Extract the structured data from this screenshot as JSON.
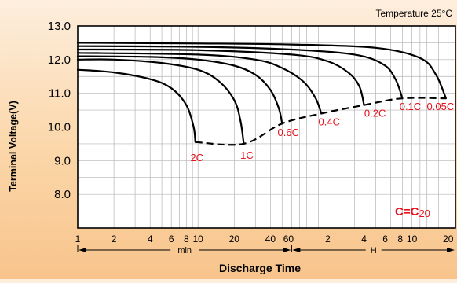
{
  "chart_data": {
    "type": "line",
    "title": "Temperature 25°C",
    "xlabel": "Discharge Time",
    "ylabel": "Terminal Voltage(V)",
    "x_scale": "log",
    "x_unit": "minutes",
    "xlim": [
      1,
      1380
    ],
    "ylim": [
      7.0,
      13.0
    ],
    "grid": true,
    "yticks": [
      "8.0",
      "9.0",
      "10.0",
      "11.0",
      "12.0",
      "13.0"
    ],
    "xtick_groups": [
      {
        "unit": "min",
        "labels": [
          "1",
          "2",
          "4",
          "6",
          "8",
          "10",
          "20",
          "40",
          "60"
        ],
        "values": [
          1,
          2,
          4,
          6,
          8,
          10,
          20,
          40,
          60
        ]
      },
      {
        "unit": "H",
        "labels": [
          "2",
          "4",
          "6",
          "8",
          "10",
          "20"
        ],
        "values": [
          120,
          240,
          360,
          480,
          600,
          1200
        ]
      }
    ],
    "annotation": {
      "text": "C=C",
      "subscript": "20",
      "position": "bottom-right",
      "color": "#e8101c"
    },
    "series": [
      {
        "name": "2C",
        "points": [
          [
            1,
            11.7
          ],
          [
            2,
            11.62
          ],
          [
            4,
            11.42
          ],
          [
            6,
            11.15
          ],
          [
            8,
            10.65
          ],
          [
            9.2,
            10.0
          ],
          [
            9.5,
            9.55
          ]
        ]
      },
      {
        "name": "1C",
        "points": [
          [
            1,
            12.0
          ],
          [
            2,
            12.0
          ],
          [
            5,
            11.9
          ],
          [
            10,
            11.7
          ],
          [
            15,
            11.35
          ],
          [
            20,
            10.8
          ],
          [
            22.5,
            10.2
          ],
          [
            24,
            9.5
          ]
        ]
      },
      {
        "name": "0.6C",
        "points": [
          [
            1,
            12.1
          ],
          [
            4,
            12.08
          ],
          [
            10,
            12.0
          ],
          [
            20,
            11.82
          ],
          [
            30,
            11.55
          ],
          [
            40,
            11.1
          ],
          [
            47,
            10.55
          ],
          [
            50,
            10.1
          ]
        ]
      },
      {
        "name": "0.4C",
        "points": [
          [
            1,
            12.2
          ],
          [
            10,
            12.15
          ],
          [
            30,
            12.0
          ],
          [
            50,
            11.75
          ],
          [
            75,
            11.35
          ],
          [
            95,
            10.85
          ],
          [
            106,
            10.4
          ]
        ]
      },
      {
        "name": "0.2C",
        "points": [
          [
            1,
            12.3
          ],
          [
            10,
            12.28
          ],
          [
            60,
            12.15
          ],
          [
            120,
            11.95
          ],
          [
            180,
            11.6
          ],
          [
            220,
            11.2
          ],
          [
            240,
            10.65
          ]
        ]
      },
      {
        "name": "0.1C",
        "points": [
          [
            1,
            12.4
          ],
          [
            10,
            12.38
          ],
          [
            60,
            12.3
          ],
          [
            200,
            12.15
          ],
          [
            350,
            11.85
          ],
          [
            440,
            11.4
          ],
          [
            500,
            10.85
          ]
        ]
      },
      {
        "name": "0.05C",
        "points": [
          [
            1,
            12.5
          ],
          [
            10,
            12.48
          ],
          [
            60,
            12.45
          ],
          [
            300,
            12.35
          ],
          [
            700,
            12.05
          ],
          [
            950,
            11.55
          ],
          [
            1150,
            10.85
          ]
        ]
      }
    ],
    "cutoff_line": {
      "style": "dashed",
      "points": [
        [
          9.5,
          9.55
        ],
        [
          24,
          9.5
        ],
        [
          50,
          10.1
        ],
        [
          106,
          10.4
        ],
        [
          240,
          10.65
        ],
        [
          500,
          10.85
        ],
        [
          1150,
          10.85
        ]
      ]
    },
    "colors": {
      "curves": "#000000",
      "labels": "#e8101c",
      "grid": "#b5b5b5",
      "plot_background": "#ffffff"
    }
  }
}
